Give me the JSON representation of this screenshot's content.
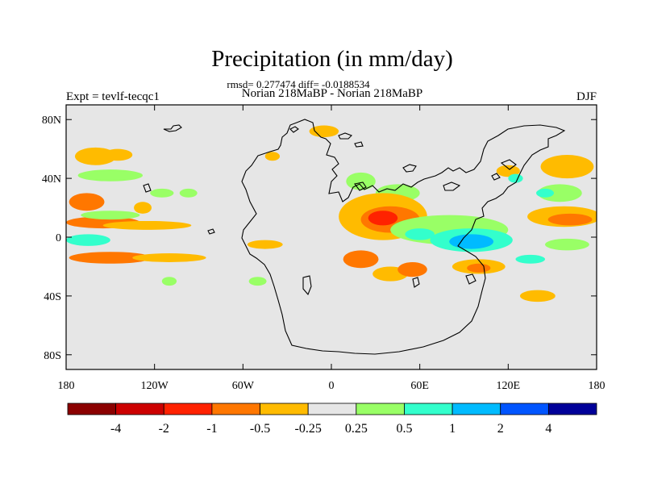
{
  "chart_data": {
    "type": "filled-contour-map",
    "title": "Precipitation (in mm/day)",
    "stats_line": "rmsd= 0.277474 diff= -0.0188534",
    "subtitle": "Norian 218MaBP - Norian 218MaBP",
    "left_label": "Expt = tevlf-tecqc1",
    "right_label": "DJF",
    "x_ticks": [
      {
        "value": -180,
        "label": "180"
      },
      {
        "value": -120,
        "label": "120W"
      },
      {
        "value": -60,
        "label": "60W"
      },
      {
        "value": 0,
        "label": "0"
      },
      {
        "value": 60,
        "label": "60E"
      },
      {
        "value": 120,
        "label": "120E"
      },
      {
        "value": 180,
        "label": "180"
      }
    ],
    "y_ticks": [
      {
        "value": 80,
        "label": "80N"
      },
      {
        "value": 40,
        "label": "40N"
      },
      {
        "value": 0,
        "label": "0"
      },
      {
        "value": -40,
        "label": "40S"
      },
      {
        "value": -80,
        "label": "80S"
      }
    ],
    "xlim": [
      -180,
      180
    ],
    "ylim": [
      -90,
      90
    ],
    "colorbar": {
      "colors": [
        "#8b0000",
        "#cc0000",
        "#ff2200",
        "#ff7700",
        "#ffbb00",
        "#e6e6e6",
        "#99ff66",
        "#33ffcc",
        "#00bbff",
        "#0055ff",
        "#000099"
      ],
      "labels": [
        {
          "boundary": 1,
          "text": "-4"
        },
        {
          "boundary": 2,
          "text": "-2"
        },
        {
          "boundary": 3,
          "text": "-1"
        },
        {
          "boundary": 4,
          "text": "-0.5"
        },
        {
          "boundary": 5,
          "text": "-0.25"
        },
        {
          "boundary": 6,
          "text": "0.25"
        },
        {
          "boundary": 7,
          "text": "0.5"
        },
        {
          "boundary": 8,
          "text": "1"
        },
        {
          "boundary": 9,
          "text": "2"
        },
        {
          "boundary": 10,
          "text": "4"
        }
      ]
    },
    "anomaly_regions": [
      {
        "lon": -160,
        "lat": 55,
        "rx": 14,
        "ry": 6,
        "level": 4
      },
      {
        "lon": -145,
        "lat": 56,
        "rx": 10,
        "ry": 4,
        "level": 4
      },
      {
        "lon": -150,
        "lat": 42,
        "rx": 22,
        "ry": 4,
        "level": 6
      },
      {
        "lon": -166,
        "lat": 24,
        "rx": 12,
        "ry": 6,
        "level": 3
      },
      {
        "lon": -155,
        "lat": 10,
        "rx": 25,
        "ry": 4,
        "level": 3
      },
      {
        "lon": -125,
        "lat": 8,
        "rx": 30,
        "ry": 3,
        "level": 4
      },
      {
        "lon": -150,
        "lat": 15,
        "rx": 20,
        "ry": 3,
        "level": 6
      },
      {
        "lon": -165,
        "lat": -2,
        "rx": 15,
        "ry": 4,
        "level": 7
      },
      {
        "lon": -150,
        "lat": -14,
        "rx": 28,
        "ry": 4,
        "level": 3
      },
      {
        "lon": -110,
        "lat": -14,
        "rx": 25,
        "ry": 3,
        "level": 4
      },
      {
        "lon": -128,
        "lat": 20,
        "rx": 6,
        "ry": 4,
        "level": 4
      },
      {
        "lon": -115,
        "lat": 30,
        "rx": 8,
        "ry": 3,
        "level": 6
      },
      {
        "lon": -97,
        "lat": 30,
        "rx": 6,
        "ry": 3,
        "level": 6
      },
      {
        "lon": -45,
        "lat": -5,
        "rx": 12,
        "ry": 3,
        "level": 4
      },
      {
        "lon": -40,
        "lat": 55,
        "rx": 5,
        "ry": 3,
        "level": 4
      },
      {
        "lon": -5,
        "lat": 72,
        "rx": 10,
        "ry": 4,
        "level": 4
      },
      {
        "lon": -110,
        "lat": -30,
        "rx": 5,
        "ry": 3,
        "level": 6
      },
      {
        "lon": -50,
        "lat": -30,
        "rx": 6,
        "ry": 3,
        "level": 6
      },
      {
        "lon": 20,
        "lat": 38,
        "rx": 10,
        "ry": 6,
        "level": 6
      },
      {
        "lon": 45,
        "lat": 30,
        "rx": 15,
        "ry": 6,
        "level": 6
      },
      {
        "lon": 35,
        "lat": 14,
        "rx": 30,
        "ry": 16,
        "level": 4
      },
      {
        "lon": 40,
        "lat": 12,
        "rx": 20,
        "ry": 9,
        "level": 3
      },
      {
        "lon": 35,
        "lat": 13,
        "rx": 10,
        "ry": 5,
        "level": 2
      },
      {
        "lon": 20,
        "lat": -15,
        "rx": 12,
        "ry": 6,
        "level": 3
      },
      {
        "lon": 40,
        "lat": -25,
        "rx": 12,
        "ry": 5,
        "level": 4
      },
      {
        "lon": 55,
        "lat": -22,
        "rx": 10,
        "ry": 5,
        "level": 3
      },
      {
        "lon": 80,
        "lat": 5,
        "rx": 40,
        "ry": 10,
        "level": 6
      },
      {
        "lon": 95,
        "lat": -2,
        "rx": 28,
        "ry": 8,
        "level": 7
      },
      {
        "lon": 95,
        "lat": -3,
        "rx": 15,
        "ry": 5,
        "level": 8
      },
      {
        "lon": 60,
        "lat": 2,
        "rx": 10,
        "ry": 4,
        "level": 7
      },
      {
        "lon": 100,
        "lat": -20,
        "rx": 18,
        "ry": 5,
        "level": 4
      },
      {
        "lon": 100,
        "lat": -21,
        "rx": 8,
        "ry": 3,
        "level": 3
      },
      {
        "lon": 140,
        "lat": -40,
        "rx": 12,
        "ry": 4,
        "level": 4
      },
      {
        "lon": 158,
        "lat": 14,
        "rx": 25,
        "ry": 7,
        "level": 4
      },
      {
        "lon": 162,
        "lat": 12,
        "rx": 15,
        "ry": 4,
        "level": 3
      },
      {
        "lon": 160,
        "lat": 48,
        "rx": 18,
        "ry": 8,
        "level": 4
      },
      {
        "lon": 155,
        "lat": 30,
        "rx": 15,
        "ry": 6,
        "level": 6
      },
      {
        "lon": 145,
        "lat": 30,
        "rx": 6,
        "ry": 3,
        "level": 7
      },
      {
        "lon": 135,
        "lat": -15,
        "rx": 10,
        "ry": 3,
        "level": 7
      },
      {
        "lon": 160,
        "lat": -5,
        "rx": 15,
        "ry": 4,
        "level": 6
      },
      {
        "lon": 120,
        "lat": 45,
        "rx": 8,
        "ry": 4,
        "level": 4
      },
      {
        "lon": 125,
        "lat": 40,
        "rx": 5,
        "ry": 3,
        "level": 7
      }
    ]
  }
}
